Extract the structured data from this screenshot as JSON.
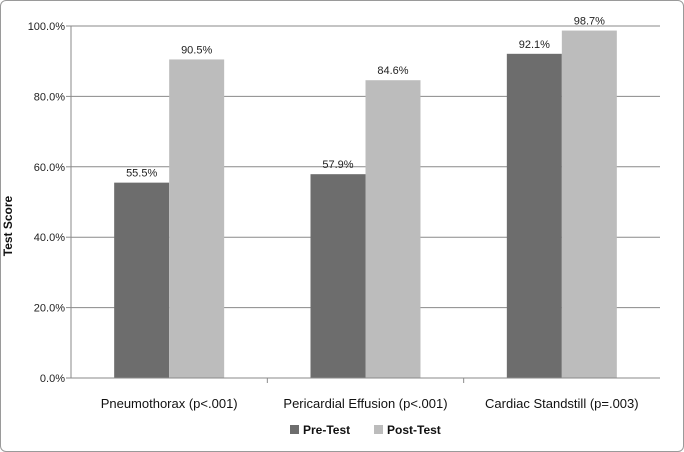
{
  "chart_data": {
    "type": "bar",
    "categories": [
      "Pneumothorax (p<.001)",
      "Pericardial Effusion (p<.001)",
      "Cardiac Standstill (p=.003)"
    ],
    "series": [
      {
        "name": "Pre-Test",
        "values": [
          55.5,
          57.9,
          92.1
        ],
        "labels": [
          "55.5%",
          "57.9%",
          "92.1%"
        ],
        "color": "#6d6d6d"
      },
      {
        "name": "Post-Test",
        "values": [
          90.5,
          84.6,
          98.7
        ],
        "labels": [
          "90.5%",
          "84.6%",
          "98.7%"
        ],
        "color": "#bcbcbc"
      }
    ],
    "title": "",
    "xlabel": "",
    "ylabel": "Test Score",
    "ylim": [
      0,
      100
    ],
    "yticks": [
      0,
      20,
      40,
      60,
      80,
      100
    ],
    "ytick_labels": [
      "0.0%",
      "20.0%",
      "40.0%",
      "60.0%",
      "80.0%",
      "100.0%"
    ],
    "grid": true,
    "legend_position": "bottom"
  }
}
